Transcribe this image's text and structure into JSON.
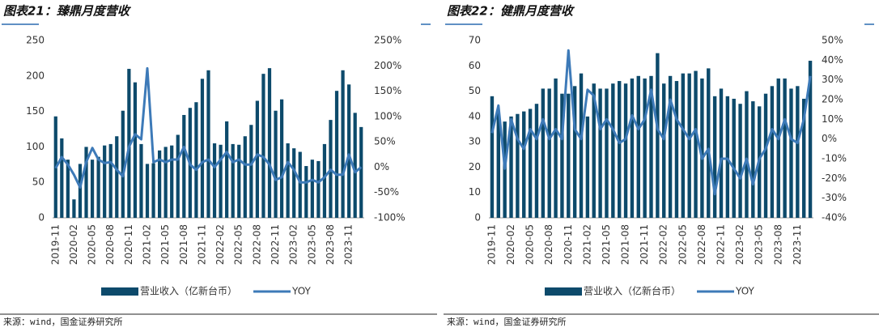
{
  "chart_data": [
    {
      "type": "bar_line",
      "title": "图表21：臻鼎月度营收",
      "source": "来源：wind，国金证券研究所",
      "categories": [
        "2019-11",
        null,
        null,
        "2020-02",
        null,
        null,
        "2020-05",
        null,
        null,
        "2020-08",
        null,
        null,
        "2020-11",
        null,
        null,
        "2021-02",
        null,
        null,
        "2021-05",
        null,
        null,
        "2021-08",
        null,
        null,
        "2021-11",
        null,
        null,
        "2022-02",
        null,
        null,
        "2022-05",
        null,
        null,
        "2022-08",
        null,
        null,
        "2022-11",
        null,
        null,
        "2023-02",
        null,
        null,
        "2023-05",
        null,
        null,
        "2023-08",
        null,
        null,
        "2023-11",
        null,
        null
      ],
      "series": [
        {
          "name": "营业收入（亿新台币）",
          "color": "#0d4a6b",
          "kind": "bar",
          "values": [
            143,
            112,
            82,
            26,
            76,
            100,
            82,
            86,
            102,
            104,
            115,
            151,
            210,
            191,
            104,
            76,
            77,
            95,
            100,
            102,
            117,
            145,
            155,
            163,
            196,
            208,
            105,
            103,
            136,
            104,
            103,
            115,
            131,
            165,
            203,
            211,
            151,
            167,
            105,
            98,
            93,
            73,
            82,
            80,
            104,
            138,
            179,
            208,
            188,
            148,
            128
          ]
        },
        {
          "name": "YOY",
          "color": "#3d7ab8",
          "kind": "line",
          "axis": "y2",
          "values": [
            -2,
            20,
            5,
            -15,
            -40,
            10,
            38,
            15,
            8,
            10,
            -5,
            -18,
            40,
            65,
            55,
            195,
            10,
            15,
            10,
            15,
            15,
            40,
            5,
            -5,
            10,
            15,
            0,
            15,
            30,
            10,
            15,
            5,
            5,
            25,
            20,
            5,
            -25,
            -20,
            10,
            -5,
            -30,
            -30,
            -25,
            -30,
            -20,
            -5,
            -15,
            -15,
            25,
            -10,
            0
          ]
        }
      ],
      "ylim": [
        0,
        250
      ],
      "yticks": [
        0,
        50,
        100,
        150,
        200,
        250
      ],
      "y2lim": [
        -100,
        250
      ],
      "y2ticks": [
        {
          "value": -100,
          "label": "-100%"
        },
        {
          "value": -50,
          "label": "-50%"
        },
        {
          "value": 0,
          "label": "0%"
        },
        {
          "value": 50,
          "label": "50%"
        },
        {
          "value": 100,
          "label": "100%"
        },
        {
          "value": 150,
          "label": "150%"
        },
        {
          "value": 200,
          "label": "200%"
        },
        {
          "value": 250,
          "label": "250%"
        }
      ]
    },
    {
      "type": "bar_line",
      "title": "图表22：健鼎月度营收",
      "source": "来源：wind，国金证券研究所",
      "categories": [
        "2019-11",
        null,
        null,
        "2020-02",
        null,
        null,
        "2020-05",
        null,
        null,
        "2020-08",
        null,
        null,
        "2020-11",
        null,
        null,
        "2021-02",
        null,
        null,
        "2021-05",
        null,
        null,
        "2021-08",
        null,
        null,
        "2021-11",
        null,
        null,
        "2022-02",
        null,
        null,
        "2022-05",
        null,
        null,
        "2022-08",
        null,
        null,
        "2022-11",
        null,
        null,
        "2023-02",
        null,
        null,
        "2023-05",
        null,
        null,
        "2023-08",
        null,
        null,
        "2023-11",
        null,
        null
      ],
      "series": [
        {
          "name": "营业收入（亿新台币）",
          "color": "#0d4a6b",
          "kind": "bar",
          "values": [
            48,
            42,
            38,
            40,
            41,
            42,
            43,
            45,
            51,
            51,
            55,
            49,
            49,
            52,
            57,
            40,
            53,
            51,
            51,
            53,
            54,
            53,
            55,
            56,
            55,
            56,
            65,
            53,
            56,
            54,
            57,
            57,
            58,
            55,
            59,
            48,
            51,
            48,
            47,
            45,
            50,
            46,
            44,
            49,
            52,
            55,
            55,
            51,
            52,
            47,
            62
          ]
        },
        {
          "name": "YOY",
          "color": "#3d7ab8",
          "kind": "line",
          "axis": "y2",
          "values": [
            3,
            17,
            -15,
            10,
            0,
            -5,
            5,
            0,
            10,
            0,
            5,
            0,
            45,
            5,
            0,
            25,
            22,
            5,
            10,
            5,
            -2,
            0,
            12,
            5,
            10,
            25,
            5,
            0,
            20,
            10,
            5,
            0,
            5,
            -10,
            -5,
            -28,
            -10,
            -10,
            -15,
            -20,
            -10,
            -23,
            -10,
            -5,
            5,
            0,
            10,
            0,
            -2,
            10,
            32
          ]
        }
      ],
      "ylim": [
        0,
        70
      ],
      "yticks": [
        0,
        10,
        20,
        30,
        40,
        50,
        60,
        70
      ],
      "y2lim": [
        -40,
        50
      ],
      "y2ticks": [
        {
          "value": -40,
          "label": "-40%"
        },
        {
          "value": -30,
          "label": "-30%"
        },
        {
          "value": -20,
          "label": "-20%"
        },
        {
          "value": -10,
          "label": "-10%"
        },
        {
          "value": 0,
          "label": "0%"
        },
        {
          "value": 10,
          "label": "10%"
        },
        {
          "value": 20,
          "label": "20%"
        },
        {
          "value": 30,
          "label": "30%"
        },
        {
          "value": 40,
          "label": "40%"
        },
        {
          "value": 50,
          "label": "50%"
        }
      ]
    }
  ]
}
